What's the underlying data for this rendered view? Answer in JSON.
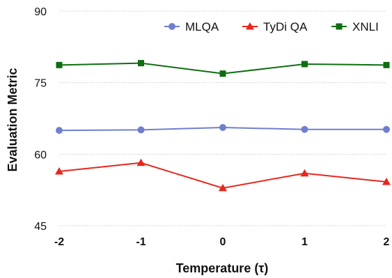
{
  "chart_data": {
    "type": "line",
    "x": [
      -2,
      -1,
      0,
      1,
      2
    ],
    "x_tick_labels": [
      "-2",
      "-1",
      "0",
      "1",
      "2"
    ],
    "xlabel": "Temperature (τ)",
    "ylabel": "Evaluation Metric",
    "ylim": [
      45,
      90
    ],
    "y_ticks": [
      45,
      60,
      75,
      90
    ],
    "grid": "horizontal dotted",
    "legend_position": "top-right",
    "series": [
      {
        "name": "MLQA",
        "marker": "circle",
        "color": "#6f7fd0",
        "values": [
          65.0,
          65.1,
          65.6,
          65.2,
          65.2
        ]
      },
      {
        "name": "TyDi QA",
        "marker": "triangle",
        "color": "#e8261c",
        "values": [
          56.4,
          58.2,
          52.9,
          56.0,
          54.2
        ]
      },
      {
        "name": "XNLI",
        "marker": "square",
        "color": "#0f6e12",
        "values": [
          78.7,
          79.1,
          76.9,
          78.9,
          78.7
        ]
      }
    ]
  }
}
